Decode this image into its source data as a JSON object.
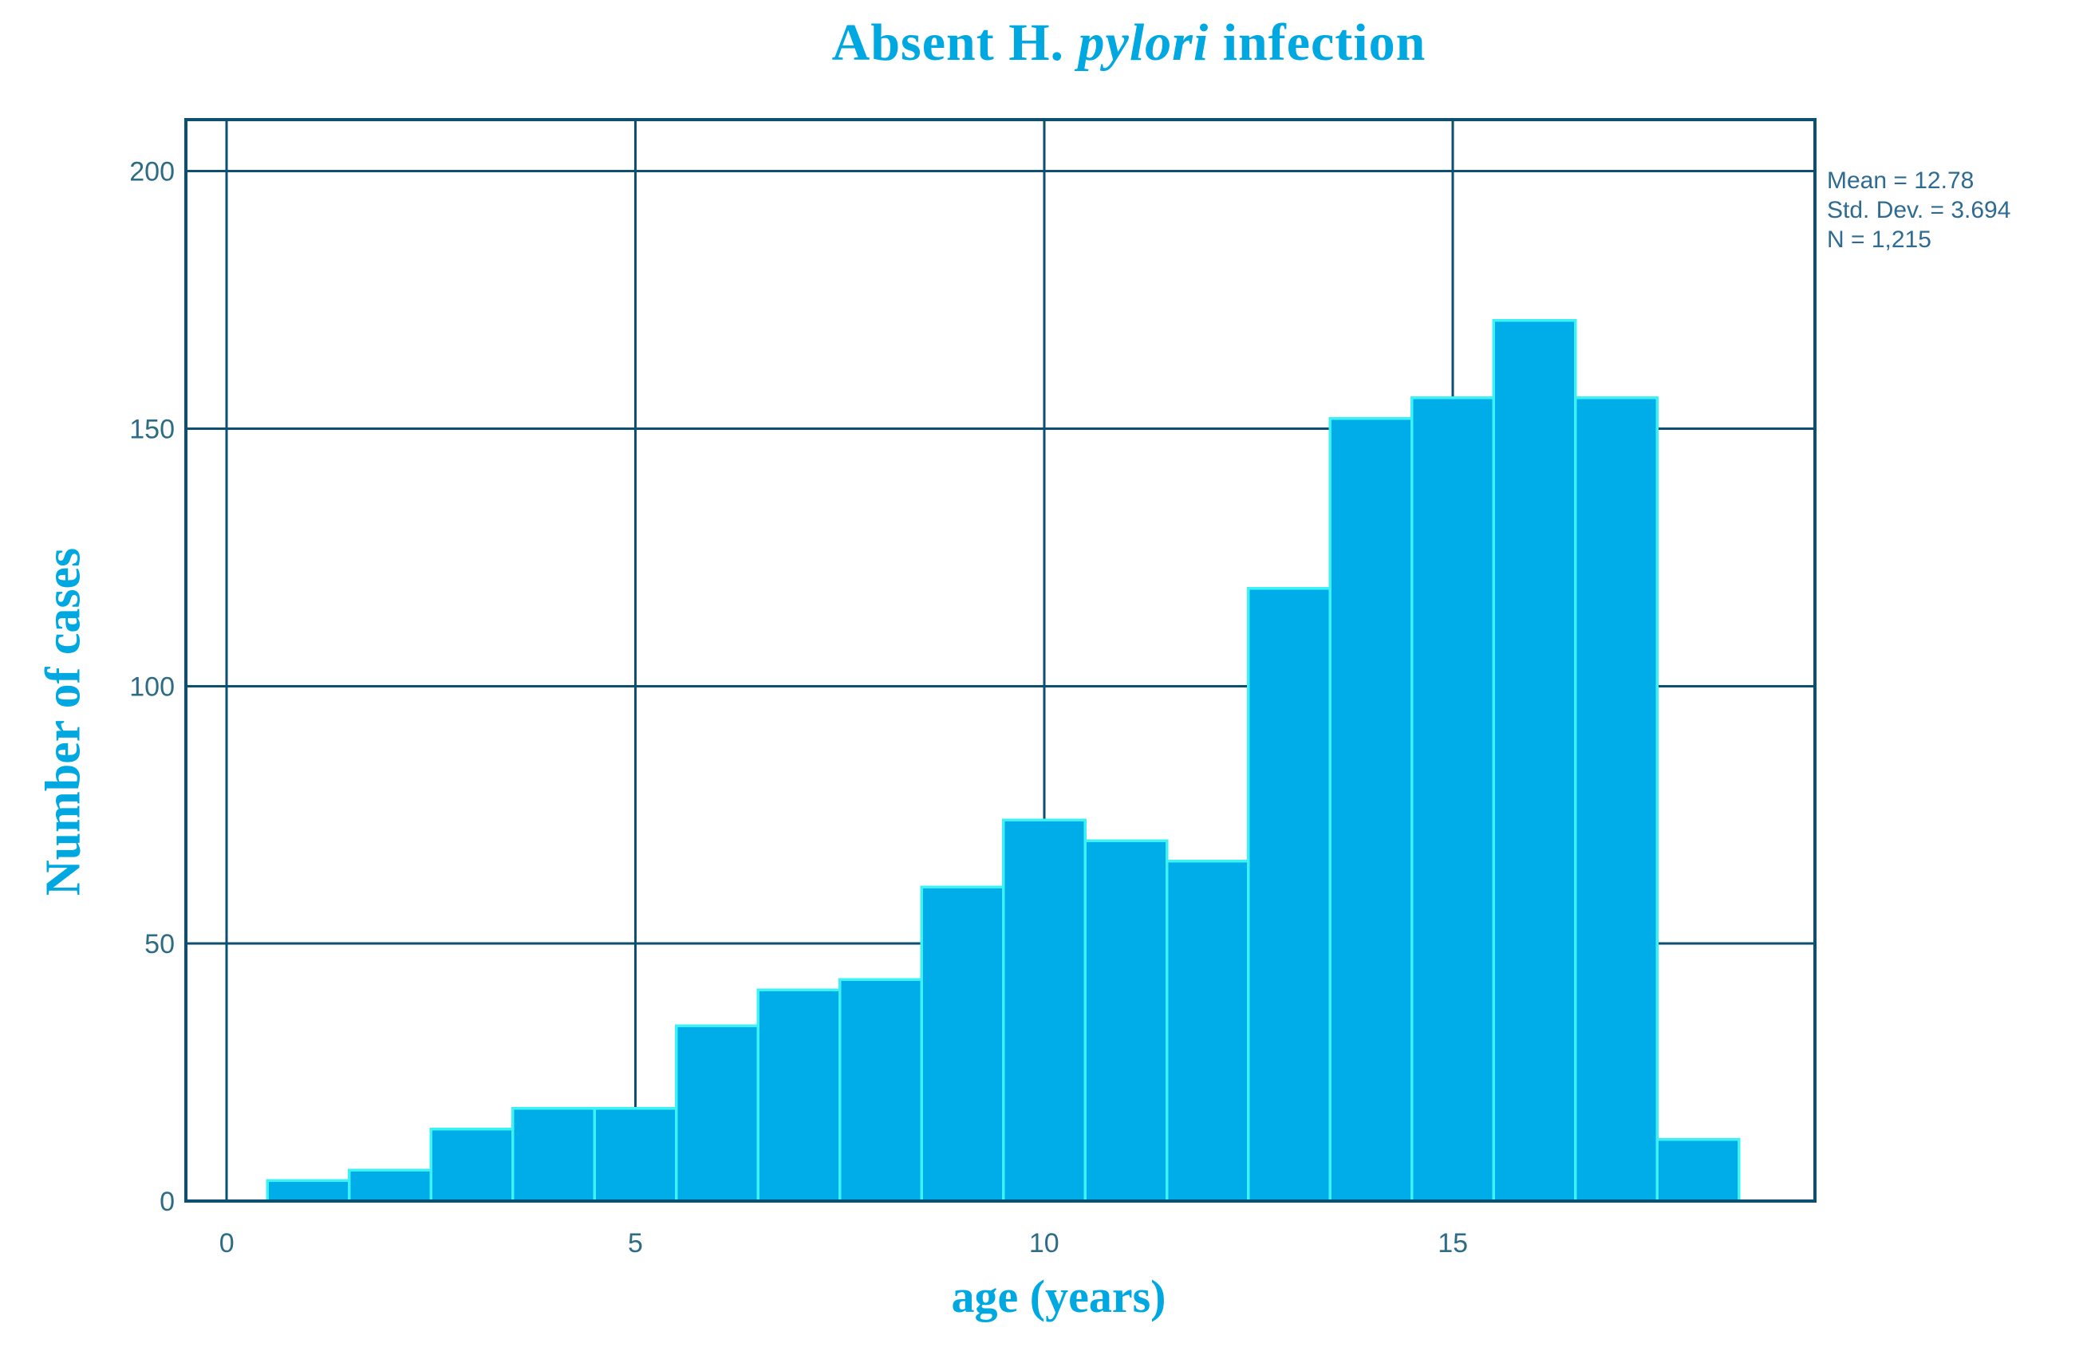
{
  "header": {
    "title_prefix": "Absent H. ",
    "title_italic": "pylori",
    "title_suffix": " infection"
  },
  "chart_data": {
    "type": "bar",
    "subtype": "histogram",
    "title": "Absent H. pylori infection",
    "xlabel": "age (years)",
    "ylabel": "Number of cases",
    "x": [
      1,
      2,
      3,
      4,
      5,
      6,
      7,
      8,
      9,
      10,
      11,
      12,
      13,
      14,
      15,
      16,
      17,
      18
    ],
    "values": [
      4,
      6,
      14,
      18,
      18,
      34,
      41,
      43,
      61,
      74,
      70,
      66,
      119,
      152,
      156,
      171,
      156,
      12
    ],
    "bin_width": 1,
    "xlim": [
      -0.5,
      19.43
    ],
    "ylim": [
      0,
      210
    ],
    "x_ticks": [
      0,
      5,
      10,
      15
    ],
    "y_ticks": [
      0,
      50,
      100,
      150,
      200
    ],
    "grid": true,
    "legend": false,
    "annotation": {
      "position": "top-right",
      "lines": [
        "Mean = 12.78",
        "Std. Dev. = 3.694",
        "N = 1,215"
      ]
    }
  },
  "colors": {
    "bar_fill": "#00ADE9",
    "bar_edge": "#3CF2F4",
    "grid_line": "#0D4F70",
    "frame": "#0D4F70",
    "tick_text": "#2E6C85",
    "stats_text": "#2F6B91",
    "accent_title": "#00A8E2",
    "background": "#FFFFFF"
  }
}
